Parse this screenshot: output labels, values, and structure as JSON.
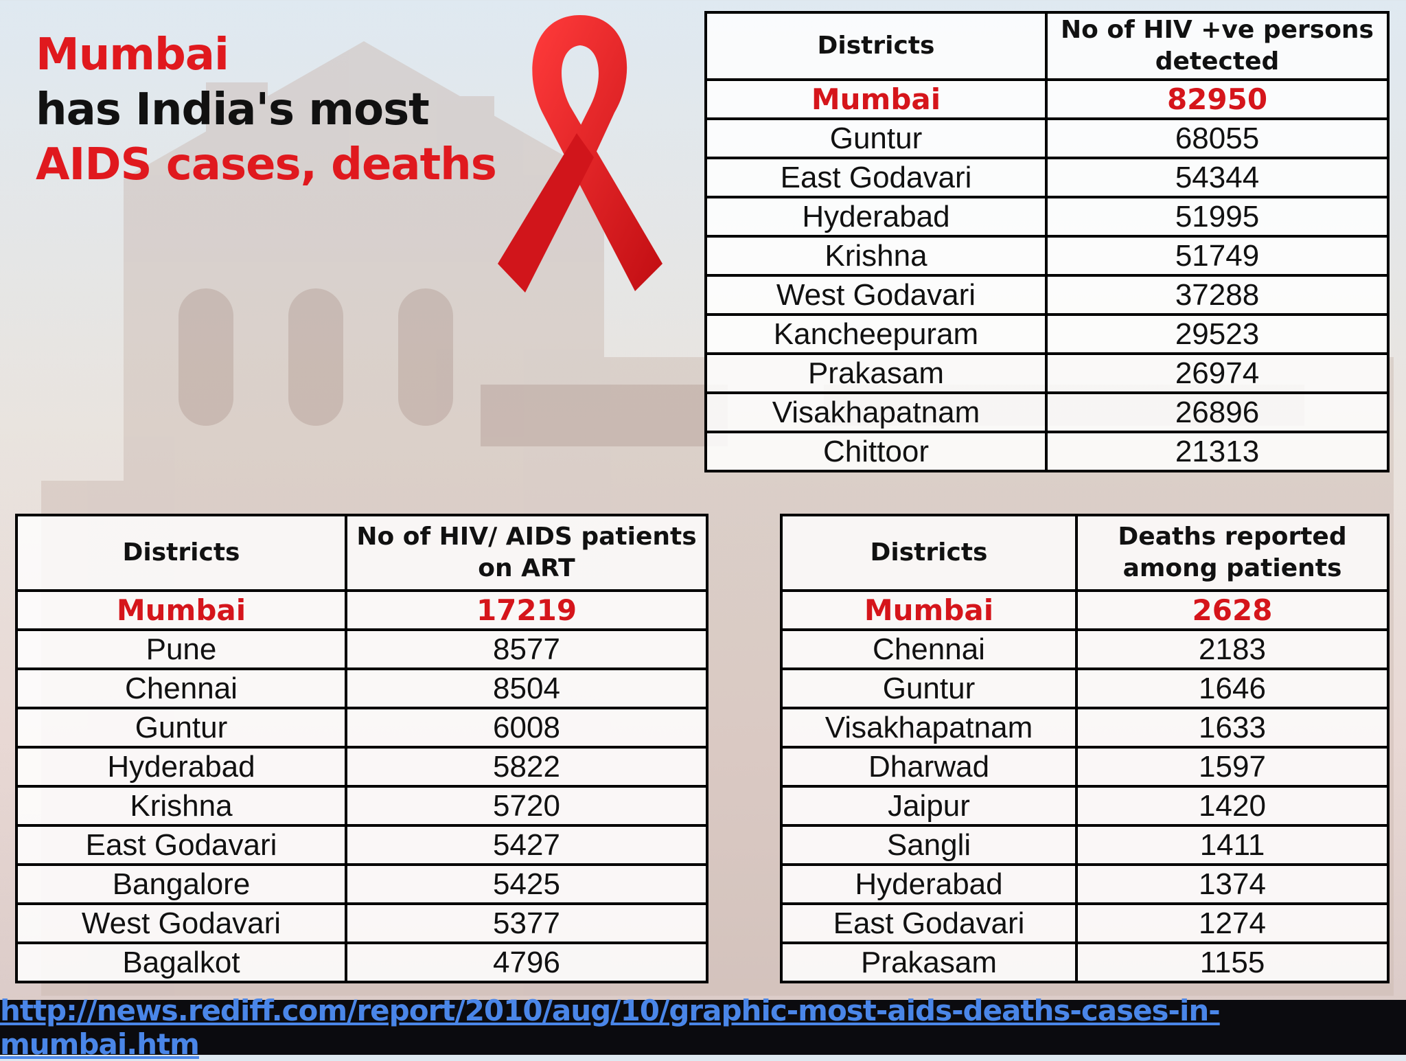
{
  "headline": {
    "line1": "Mumbai",
    "line2": "has India's most",
    "line3": "AIDS cases, deaths"
  },
  "icons": {
    "ribbon": "red-ribbon-icon"
  },
  "colors": {
    "accent_red": "#e0191e",
    "link_blue": "#4a86e8",
    "footer_bg": "#0b0b0f"
  },
  "table_hiv_detected": {
    "headers": [
      "Districts",
      "No  of HIV +ve persons  detected"
    ],
    "rows": [
      [
        "Mumbai",
        "82950"
      ],
      [
        "Guntur",
        "68055"
      ],
      [
        "East Godavari",
        "54344"
      ],
      [
        "Hyderabad",
        "51995"
      ],
      [
        "Krishna",
        "51749"
      ],
      [
        "West Godavari",
        "37288"
      ],
      [
        "Kancheepuram",
        "29523"
      ],
      [
        "Prakasam",
        "26974"
      ],
      [
        "Visakhapatnam",
        "26896"
      ],
      [
        "Chittoor",
        "21313"
      ]
    ]
  },
  "table_on_art": {
    "headers": [
      "Districts",
      "No   of HIV/ AIDS patients on ART"
    ],
    "rows": [
      [
        "Mumbai",
        "17219"
      ],
      [
        "Pune",
        "8577"
      ],
      [
        "Chennai",
        "8504"
      ],
      [
        "Guntur",
        "6008"
      ],
      [
        "Hyderabad",
        "5822"
      ],
      [
        "Krishna",
        "5720"
      ],
      [
        "East Godavari",
        "5427"
      ],
      [
        "Bangalore",
        "5425"
      ],
      [
        "West Godavari",
        "5377"
      ],
      [
        "Bagalkot",
        "4796"
      ]
    ]
  },
  "table_deaths": {
    "headers": [
      "Districts",
      "Deaths reported among patients"
    ],
    "rows": [
      [
        "Mumbai",
        "2628"
      ],
      [
        "Chennai",
        "2183"
      ],
      [
        "Guntur",
        "1646"
      ],
      [
        "Visakhapatnam",
        "1633"
      ],
      [
        "Dharwad",
        "1597"
      ],
      [
        "Jaipur",
        "1420"
      ],
      [
        "Sangli",
        "1411"
      ],
      [
        "Hyderabad",
        "1374"
      ],
      [
        "East Godavari",
        "1274"
      ],
      [
        "Prakasam",
        "1155"
      ]
    ]
  },
  "source": {
    "url_text": "http://news.rediff.com/report/2010/aug/10/graphic-most-aids-deaths-cases-in-mumbai.htm"
  }
}
